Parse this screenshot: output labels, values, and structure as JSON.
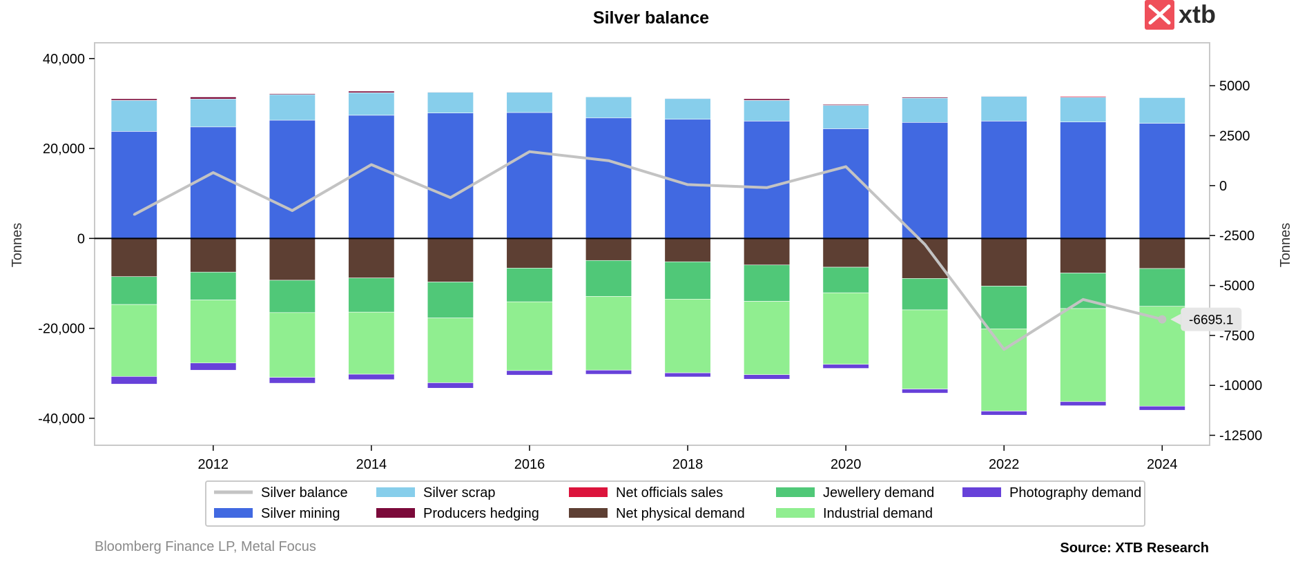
{
  "header": {
    "title": "Silver balance"
  },
  "logo": {
    "text": "xtb",
    "color": "#ef4f5a"
  },
  "chart_data": {
    "type": "bar",
    "title": "Silver balance",
    "ylabel_left": "Tonnes",
    "ylabel_right": "Tonnes",
    "x": [
      2011,
      2012,
      2013,
      2014,
      2015,
      2016,
      2017,
      2018,
      2019,
      2020,
      2021,
      2022,
      2023,
      2024
    ],
    "x_ticks": [
      "2012",
      "2014",
      "2016",
      "2018",
      "2020",
      "2022",
      "2024"
    ],
    "x_tick_values": [
      2012,
      2014,
      2016,
      2018,
      2020,
      2022,
      2024
    ],
    "xlim": [
      2010.5,
      2024.6
    ],
    "ylim_left": [
      -46000,
      43500
    ],
    "ylim_right": [
      -13000,
      7150
    ],
    "y_ticks_left": [
      "40,000",
      "20,000",
      "0",
      "-20,000",
      "-40,000"
    ],
    "y_tick_values_left": [
      40000,
      20000,
      0,
      -20000,
      -40000
    ],
    "y_ticks_right": [
      "5000",
      "2500",
      "0",
      "-2500",
      "-5000",
      "-7500",
      "-10000",
      "-12500"
    ],
    "y_tick_values_right": [
      5000,
      2500,
      0,
      -2500,
      -5000,
      -7500,
      -10000,
      -12500
    ],
    "stack_positive": [
      {
        "name": "Silver mining",
        "color": "#4169e1",
        "values": [
          23800,
          24800,
          26300,
          27400,
          27900,
          28000,
          26800,
          26500,
          26100,
          24400,
          25800,
          26100,
          25900,
          25600
        ]
      },
      {
        "name": "Silver scrap",
        "color": "#87ceeb",
        "values": [
          6900,
          6200,
          5700,
          5000,
          4600,
          4500,
          4700,
          4600,
          4600,
          5200,
          5400,
          5500,
          5500,
          5700
        ]
      },
      {
        "name": "Producers hedging",
        "color": "#7b0a3a",
        "values": [
          350,
          450,
          200,
          350,
          0,
          0,
          0,
          0,
          350,
          200,
          200,
          0,
          0,
          0
        ]
      },
      {
        "name": "Net officials sales",
        "color": "#dc143c",
        "values": [
          0,
          0,
          0,
          0,
          100,
          100,
          50,
          100,
          0,
          0,
          0,
          100,
          200,
          0
        ]
      }
    ],
    "stack_negative": [
      {
        "name": "Net physical demand",
        "color": "#5d3f33",
        "values": [
          -8500,
          -7500,
          -9300,
          -8800,
          -9700,
          -6600,
          -4900,
          -5200,
          -5900,
          -6400,
          -8900,
          -10600,
          -7700,
          -6700
        ]
      },
      {
        "name": "Jewellery demand",
        "color": "#50c878",
        "values": [
          -6200,
          -6200,
          -7200,
          -7600,
          -8000,
          -7500,
          -8000,
          -8300,
          -8100,
          -5700,
          -7000,
          -9500,
          -7900,
          -8400
        ]
      },
      {
        "name": "Industrial demand",
        "color": "#90ee90",
        "values": [
          -16000,
          -14000,
          -14400,
          -13800,
          -14400,
          -15300,
          -16400,
          -16400,
          -16300,
          -15900,
          -17600,
          -18300,
          -20700,
          -22200
        ]
      },
      {
        "name": "Photography demand",
        "color": "#6741d9",
        "values": [
          -1700,
          -1600,
          -1300,
          -1200,
          -1200,
          -1000,
          -900,
          -900,
          -1000,
          -900,
          -900,
          -900,
          -900,
          -900
        ]
      }
    ],
    "line": {
      "name": "Silver balance",
      "color": "#c3c3c3",
      "axis": "right",
      "values": [
        -1450,
        650,
        -1250,
        1050,
        -600,
        1700,
        1250,
        50,
        -100,
        950,
        -2950,
        -8200,
        -5700,
        -6695.1
      ]
    },
    "annotation": {
      "text": "-6695.1",
      "x": 2024,
      "y": -6695.1
    },
    "legend_placement": "bottom-center"
  },
  "legend": {
    "items": [
      {
        "label": "Silver balance",
        "color": "#c3c3c3",
        "kind": "line"
      },
      {
        "label": "Silver scrap",
        "color": "#87ceeb",
        "kind": "box"
      },
      {
        "label": "Net officials sales",
        "color": "#dc143c",
        "kind": "box"
      },
      {
        "label": "Jewellery demand",
        "color": "#50c878",
        "kind": "box"
      },
      {
        "label": "Photography demand",
        "color": "#6741d9",
        "kind": "box"
      },
      {
        "label": "Silver mining",
        "color": "#4169e1",
        "kind": "box"
      },
      {
        "label": "Producers hedging",
        "color": "#7b0a3a",
        "kind": "box"
      },
      {
        "label": "Net physical demand",
        "color": "#5d3f33",
        "kind": "box"
      },
      {
        "label": "Industrial demand",
        "color": "#90ee90",
        "kind": "box"
      }
    ]
  },
  "footer": {
    "left": "Bloomberg Finance LP, Metal Focus",
    "right": "Source: XTB Research"
  }
}
